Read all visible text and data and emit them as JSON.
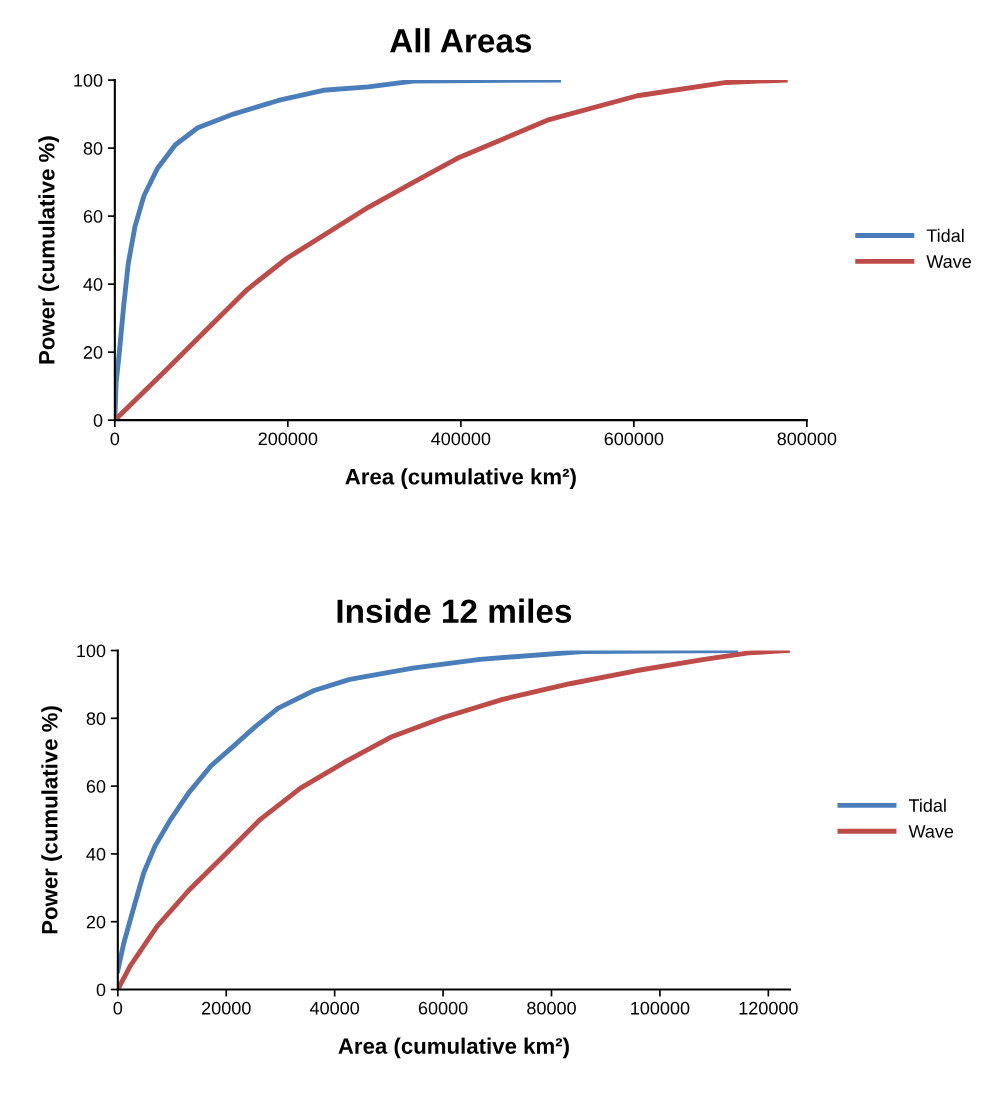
{
  "chart_data": [
    {
      "type": "line",
      "title": "All Areas",
      "xlabel": "Area (cumulative km²)",
      "ylabel": "Power (cumulative %)",
      "xlim": [
        0,
        800000
      ],
      "xticks": [
        0,
        200000,
        400000,
        600000,
        800000
      ],
      "ylim": [
        0,
        100
      ],
      "yticks": [
        0,
        20,
        40,
        60,
        80,
        100
      ],
      "grid": false,
      "legend": "right",
      "marker": "none",
      "line_style": "solid",
      "series": [
        {
          "name": "Tidal",
          "color": "#4a7ebb",
          "x": [
            0,
            1500,
            5200,
            10400,
            15500,
            23300,
            33700,
            49200,
            70000,
            95900,
            137000,
            189000,
            241000,
            293000,
            345000,
            513000
          ],
          "values": [
            0,
            11,
            20,
            34,
            46,
            57,
            66,
            74,
            81,
            86,
            90,
            94,
            97,
            98,
            99.7,
            100
          ]
        },
        {
          "name": "Wave",
          "color": "#be4b48",
          "x": [
            0,
            59600,
            106000,
            153000,
            199000,
            293000,
            345000,
            396000,
            500000,
            604000,
            707000,
            775000
          ],
          "values": [
            0,
            14.8,
            26.6,
            38.4,
            47.6,
            62.6,
            69.9,
            77,
            88.2,
            95.4,
            99.3,
            100
          ]
        }
      ]
    },
    {
      "type": "line",
      "title": "Inside 12 miles",
      "xlabel": "Area (cumulative km²)",
      "ylabel": "Power (cumulative %)",
      "xlim": [
        0,
        124000
      ],
      "xticks": [
        0,
        20000,
        40000,
        60000,
        80000,
        100000,
        120000
      ],
      "ylim": [
        0,
        100
      ],
      "yticks": [
        0,
        20,
        40,
        60,
        80,
        100
      ],
      "grid": false,
      "legend": "right",
      "marker": "none",
      "line_style": "solid",
      "series": [
        {
          "name": "Tidal",
          "color": "#4a7ebb",
          "x": [
            0,
            1075,
            3140,
            4800,
            6860,
            9760,
            13070,
            17200,
            21340,
            25470,
            29600,
            36200,
            42800,
            54400,
            66800,
            85800,
            114000
          ],
          "values": [
            5.6,
            13.5,
            25.3,
            34.5,
            42.3,
            50.2,
            58,
            66,
            71.8,
            77.7,
            83,
            88.2,
            91.5,
            94.8,
            97.4,
            99.7,
            100
          ]
        },
        {
          "name": "Wave",
          "color": "#be4b48",
          "x": [
            0,
            2300,
            7280,
            13070,
            19700,
            26300,
            33700,
            42000,
            50300,
            60200,
            71000,
            83400,
            95800,
            108200,
            116400,
            123900
          ],
          "values": [
            0,
            7,
            18.7,
            29.2,
            39.7,
            50.2,
            59.4,
            67.2,
            74.4,
            80.3,
            85.6,
            90.2,
            94.1,
            97.4,
            99.3,
            100
          ]
        }
      ]
    }
  ]
}
